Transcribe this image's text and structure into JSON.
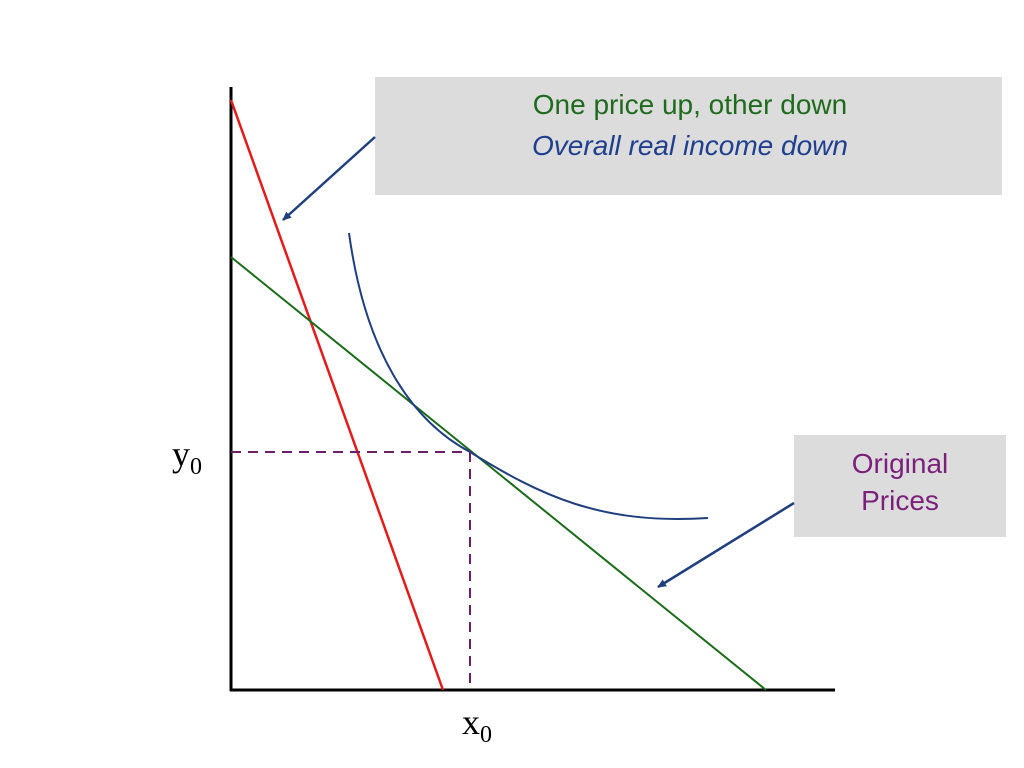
{
  "axis_labels": {
    "y": {
      "main": "y",
      "sub": "0"
    },
    "x": {
      "main": "x",
      "sub": "0"
    }
  },
  "callouts": [
    {
      "lines": [
        "One price up, other down",
        "Overall real income down"
      ]
    },
    {
      "lines": [
        "Original",
        "Prices"
      ]
    }
  ]
}
